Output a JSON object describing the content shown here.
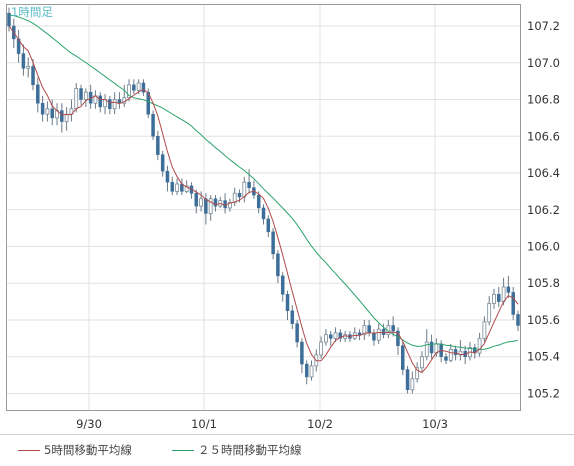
{
  "chart_data": {
    "type": "candlestick",
    "title": "1時間足",
    "x_tick_labels": [
      "9/30",
      "10/1",
      "10/2",
      "10/3"
    ],
    "y_tick_labels": [
      "107.2",
      "107.0",
      "106.8",
      "106.6",
      "106.4",
      "106.2",
      "106.0",
      "105.8",
      "105.6",
      "105.4",
      "105.2"
    ],
    "ylim": [
      105.11,
      107.32
    ],
    "grid": true,
    "legend_position": "bottom",
    "series": [
      {
        "name": "5時間移動平均線",
        "color": "#b04a4a"
      },
      {
        "name": "２５時間移動平均線",
        "color": "#2aa36b"
      }
    ],
    "candles": [
      [
        107.27,
        107.2,
        107.17,
        107.3
      ],
      [
        107.2,
        107.13,
        107.08,
        107.24
      ],
      [
        107.13,
        107.05,
        107.0,
        107.18
      ],
      [
        107.05,
        106.97,
        106.93,
        107.1
      ],
      [
        106.97,
        106.98,
        106.92,
        107.03
      ],
      [
        106.98,
        106.88,
        106.85,
        107.02
      ],
      [
        106.88,
        106.78,
        106.73,
        106.92
      ],
      [
        106.78,
        106.72,
        106.68,
        106.82
      ],
      [
        106.72,
        106.75,
        106.68,
        106.79
      ],
      [
        106.75,
        106.7,
        106.66,
        106.8
      ],
      [
        106.7,
        106.74,
        106.66,
        106.78
      ],
      [
        106.74,
        106.68,
        106.62,
        106.78
      ],
      [
        106.68,
        106.72,
        106.63,
        106.76
      ],
      [
        106.72,
        106.75,
        106.68,
        106.8
      ],
      [
        106.75,
        106.86,
        106.73,
        106.89
      ],
      [
        106.86,
        106.8,
        106.77,
        106.88
      ],
      [
        106.8,
        106.84,
        106.76,
        106.86
      ],
      [
        106.84,
        106.78,
        106.75,
        106.88
      ],
      [
        106.78,
        106.82,
        106.75,
        106.85
      ],
      [
        106.82,
        106.76,
        106.73,
        106.84
      ],
      [
        106.76,
        106.8,
        106.72,
        106.83
      ],
      [
        106.8,
        106.75,
        106.72,
        106.82
      ],
      [
        106.75,
        106.8,
        106.72,
        106.84
      ],
      [
        106.8,
        106.78,
        106.75,
        106.84
      ],
      [
        106.78,
        106.81,
        106.76,
        106.88
      ],
      [
        106.81,
        106.88,
        106.79,
        106.91
      ],
      [
        106.88,
        106.85,
        106.83,
        106.91
      ],
      [
        106.85,
        106.89,
        106.83,
        106.91
      ],
      [
        106.89,
        106.84,
        106.82,
        106.91
      ],
      [
        106.84,
        106.72,
        106.7,
        106.86
      ],
      [
        106.72,
        106.6,
        106.58,
        106.74
      ],
      [
        106.6,
        106.5,
        106.47,
        106.63
      ],
      [
        106.5,
        106.41,
        106.38,
        106.52
      ],
      [
        106.41,
        106.35,
        106.3,
        106.44
      ],
      [
        106.35,
        106.3,
        106.28,
        106.38
      ],
      [
        106.3,
        106.34,
        106.28,
        106.37
      ],
      [
        106.34,
        106.3,
        106.28,
        106.37
      ],
      [
        106.3,
        106.33,
        106.29,
        106.36
      ],
      [
        106.33,
        106.29,
        106.26,
        106.35
      ],
      [
        106.29,
        106.22,
        106.18,
        106.31
      ],
      [
        106.22,
        106.26,
        106.19,
        106.3
      ],
      [
        106.26,
        106.18,
        106.12,
        106.29
      ],
      [
        106.18,
        106.26,
        106.14,
        106.28
      ],
      [
        106.26,
        106.22,
        106.19,
        106.28
      ],
      [
        106.22,
        106.25,
        106.21,
        106.27
      ],
      [
        106.25,
        106.21,
        106.18,
        106.29
      ],
      [
        106.21,
        106.24,
        106.19,
        106.26
      ],
      [
        106.24,
        106.29,
        106.22,
        106.32
      ],
      [
        106.29,
        106.27,
        106.24,
        106.31
      ],
      [
        106.27,
        106.35,
        106.24,
        106.38
      ],
      [
        106.35,
        106.32,
        106.29,
        106.42
      ],
      [
        106.32,
        106.28,
        106.26,
        106.36
      ],
      [
        106.28,
        106.21,
        106.18,
        106.3
      ],
      [
        106.21,
        106.15,
        106.12,
        106.23
      ],
      [
        106.15,
        106.08,
        106.05,
        106.17
      ],
      [
        106.08,
        105.96,
        105.93,
        106.1
      ],
      [
        105.96,
        105.84,
        105.8,
        105.98
      ],
      [
        105.84,
        105.74,
        105.7,
        105.86
      ],
      [
        105.74,
        105.65,
        105.6,
        105.76
      ],
      [
        105.65,
        105.58,
        105.55,
        105.68
      ],
      [
        105.58,
        105.48,
        105.45,
        105.6
      ],
      [
        105.48,
        105.36,
        105.31,
        105.5
      ],
      [
        105.36,
        105.29,
        105.25,
        105.38
      ],
      [
        105.29,
        105.35,
        105.27,
        105.38
      ],
      [
        105.35,
        105.41,
        105.32,
        105.44
      ],
      [
        105.41,
        105.48,
        105.39,
        105.51
      ],
      [
        105.48,
        105.52,
        105.46,
        105.55
      ],
      [
        105.52,
        105.5,
        105.46,
        105.54
      ],
      [
        105.5,
        105.53,
        105.48,
        105.56
      ],
      [
        105.53,
        105.5,
        105.48,
        105.55
      ],
      [
        105.5,
        105.52,
        105.48,
        105.54
      ],
      [
        105.52,
        105.5,
        105.48,
        105.54
      ],
      [
        105.5,
        105.53,
        105.49,
        105.56
      ],
      [
        105.53,
        105.52,
        105.49,
        105.55
      ],
      [
        105.52,
        105.57,
        105.49,
        105.6
      ],
      [
        105.57,
        105.53,
        105.51,
        105.6
      ],
      [
        105.53,
        105.49,
        105.46,
        105.55
      ],
      [
        105.49,
        105.55,
        105.47,
        105.58
      ],
      [
        105.55,
        105.52,
        105.5,
        105.58
      ],
      [
        105.52,
        105.57,
        105.5,
        105.6
      ],
      [
        105.57,
        105.54,
        105.51,
        105.62
      ],
      [
        105.54,
        105.46,
        105.41,
        105.56
      ],
      [
        105.46,
        105.33,
        105.3,
        105.48
      ],
      [
        105.33,
        105.22,
        105.2,
        105.35
      ],
      [
        105.22,
        105.28,
        105.2,
        105.32
      ],
      [
        105.28,
        105.34,
        105.26,
        105.37
      ],
      [
        105.34,
        105.4,
        105.32,
        105.43
      ],
      [
        105.4,
        105.48,
        105.38,
        105.55
      ],
      [
        105.48,
        105.42,
        105.39,
        105.52
      ],
      [
        105.42,
        105.47,
        105.4,
        105.5
      ],
      [
        105.47,
        105.4,
        105.37,
        105.49
      ],
      [
        105.4,
        105.38,
        105.36,
        105.42
      ],
      [
        105.38,
        105.44,
        105.37,
        105.47
      ],
      [
        105.44,
        105.41,
        105.38,
        105.46
      ],
      [
        105.41,
        105.43,
        105.38,
        105.49
      ],
      [
        105.43,
        105.4,
        105.36,
        105.46
      ],
      [
        105.4,
        105.45,
        105.38,
        105.48
      ],
      [
        105.45,
        105.42,
        105.39,
        105.47
      ],
      [
        105.42,
        105.5,
        105.4,
        105.53
      ],
      [
        105.5,
        105.59,
        105.48,
        105.62
      ],
      [
        105.59,
        105.69,
        105.57,
        105.73
      ],
      [
        105.69,
        105.74,
        105.66,
        105.77
      ],
      [
        105.74,
        105.7,
        105.67,
        105.78
      ],
      [
        105.7,
        105.78,
        105.68,
        105.83
      ],
      [
        105.78,
        105.75,
        105.72,
        105.84
      ],
      [
        105.75,
        105.63,
        105.6,
        105.78
      ],
      [
        105.63,
        105.57,
        105.54,
        105.65
      ]
    ]
  }
}
